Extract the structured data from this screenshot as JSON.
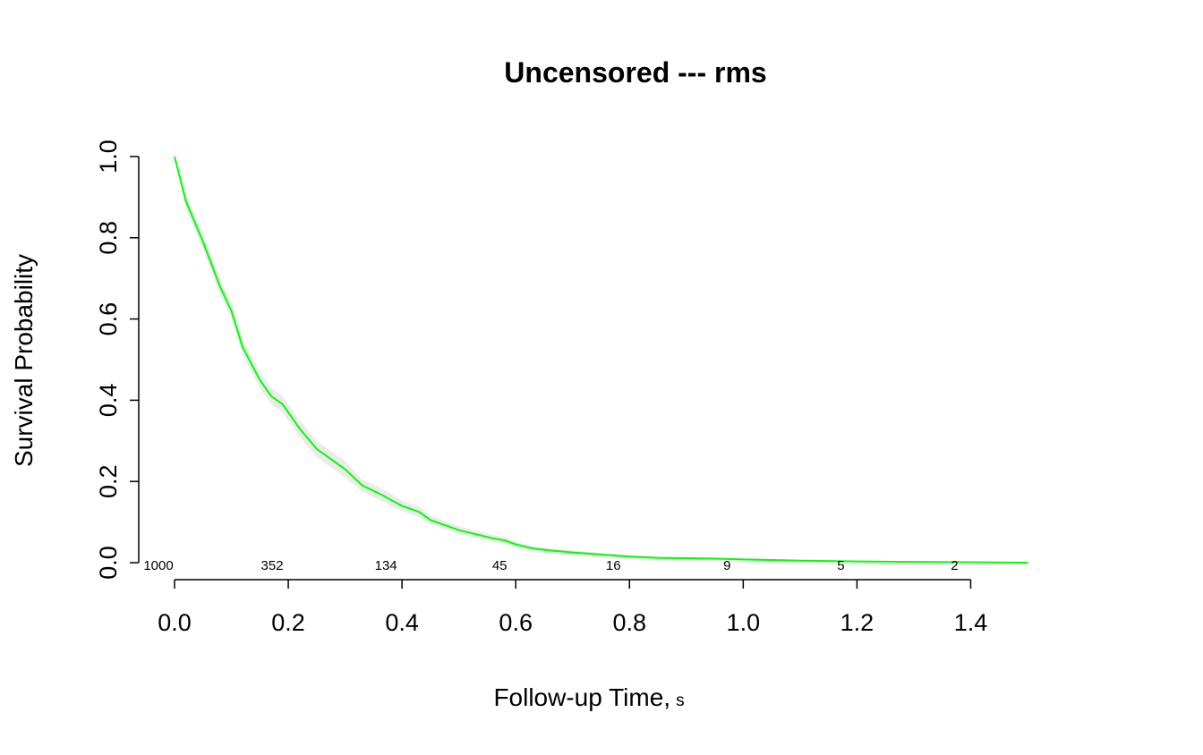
{
  "chart_data": {
    "type": "line",
    "title": "Uncensored --- rms",
    "xlabel": "Follow-up Time,",
    "xlabel_unit": "s",
    "ylabel": "Survival Probability",
    "xlim": [
      0,
      1.5
    ],
    "ylim": [
      0,
      1.0
    ],
    "x_ticks": [
      0.0,
      0.2,
      0.4,
      0.6,
      0.8,
      1.0,
      1.2,
      1.4
    ],
    "x_tick_labels": [
      "0.0",
      "0.2",
      "0.4",
      "0.6",
      "0.8",
      "1.0",
      "1.2",
      "1.4"
    ],
    "y_ticks": [
      0.0,
      0.2,
      0.4,
      0.6,
      0.8,
      1.0
    ],
    "y_tick_labels": [
      "0.0",
      "0.2",
      "0.4",
      "0.6",
      "0.8",
      "1.0"
    ],
    "grid": false,
    "colors": {
      "curve": "#00ff00",
      "band": "#ebebeb"
    },
    "series": [
      {
        "x": [
          0.0,
          0.02,
          0.05,
          0.08,
          0.1,
          0.12,
          0.15,
          0.17,
          0.19,
          0.2,
          0.22,
          0.25,
          0.28,
          0.3,
          0.33,
          0.36,
          0.38,
          0.4,
          0.43,
          0.45,
          0.48,
          0.5,
          0.53,
          0.56,
          0.58,
          0.6,
          0.63,
          0.66,
          0.7,
          0.75,
          0.8,
          0.85,
          0.9,
          0.95,
          1.0,
          1.1,
          1.2,
          1.3,
          1.4,
          1.5
        ],
        "y": [
          1.0,
          0.89,
          0.79,
          0.68,
          0.62,
          0.53,
          0.45,
          0.41,
          0.39,
          0.37,
          0.33,
          0.28,
          0.25,
          0.23,
          0.19,
          0.17,
          0.155,
          0.14,
          0.125,
          0.105,
          0.09,
          0.08,
          0.07,
          0.06,
          0.055,
          0.045,
          0.035,
          0.03,
          0.025,
          0.02,
          0.015,
          0.012,
          0.011,
          0.01,
          0.008,
          0.005,
          0.003,
          0.002,
          0.001,
          0.0
        ],
        "lower": [
          1.0,
          0.87,
          0.77,
          0.66,
          0.6,
          0.51,
          0.43,
          0.39,
          0.37,
          0.35,
          0.31,
          0.26,
          0.23,
          0.21,
          0.175,
          0.155,
          0.14,
          0.127,
          0.112,
          0.094,
          0.08,
          0.07,
          0.061,
          0.052,
          0.047,
          0.038,
          0.029,
          0.024,
          0.02,
          0.016,
          0.011,
          0.009,
          0.008,
          0.007,
          0.005,
          0.003,
          0.001,
          0.0,
          0.0,
          0.0
        ],
        "upper": [
          1.0,
          0.91,
          0.81,
          0.7,
          0.64,
          0.55,
          0.47,
          0.43,
          0.41,
          0.39,
          0.35,
          0.3,
          0.27,
          0.25,
          0.205,
          0.185,
          0.17,
          0.153,
          0.138,
          0.116,
          0.1,
          0.09,
          0.079,
          0.068,
          0.063,
          0.052,
          0.041,
          0.036,
          0.03,
          0.024,
          0.019,
          0.015,
          0.014,
          0.013,
          0.011,
          0.007,
          0.005,
          0.004,
          0.003,
          0.002
        ]
      }
    ],
    "numbers_at_risk": {
      "x": [
        0.0,
        0.2,
        0.4,
        0.6,
        0.8,
        1.0,
        1.2,
        1.4
      ],
      "labels": [
        "1000",
        "352",
        "134",
        "45",
        "16",
        "9",
        "5",
        "2"
      ]
    }
  }
}
